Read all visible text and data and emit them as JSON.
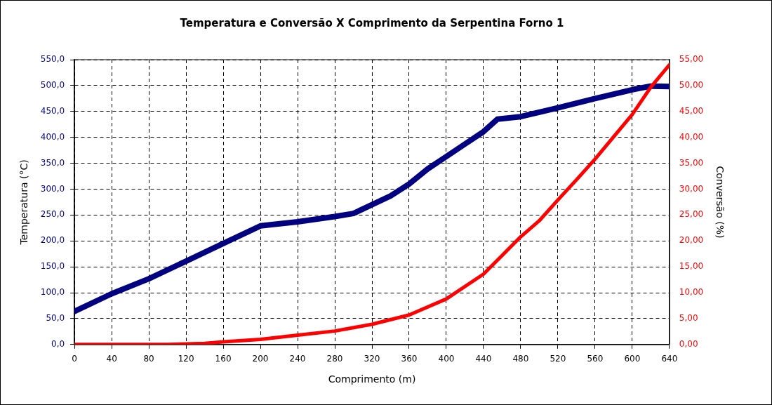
{
  "chart_data": {
    "type": "line",
    "title": "Temperatura e Conversão X Comprimento da Serpentina Forno 1",
    "xlabel": "Comprimento (m)",
    "ylabel": "Temperatura (°C)",
    "y2label": "Conversão (%)",
    "xlim": [
      0,
      640
    ],
    "xticks": [
      0,
      40,
      80,
      120,
      160,
      200,
      240,
      280,
      320,
      360,
      400,
      440,
      480,
      520,
      560,
      600,
      640
    ],
    "ylim": [
      0,
      550
    ],
    "yticks": [
      {
        "value": 0,
        "label": "0,0"
      },
      {
        "value": 50,
        "label": "50,0"
      },
      {
        "value": 100,
        "label": "100,0"
      },
      {
        "value": 150,
        "label": "150,0"
      },
      {
        "value": 200,
        "label": "200,0"
      },
      {
        "value": 250,
        "label": "250,0"
      },
      {
        "value": 300,
        "label": "300,0"
      },
      {
        "value": 350,
        "label": "350,0"
      },
      {
        "value": 400,
        "label": "400,0"
      },
      {
        "value": 450,
        "label": "450,0"
      },
      {
        "value": 500,
        "label": "500,0"
      },
      {
        "value": 550,
        "label": "550,0"
      }
    ],
    "y2lim": [
      0,
      55
    ],
    "y2ticks": [
      {
        "value": 0,
        "label": "0,00"
      },
      {
        "value": 5,
        "label": "5,00"
      },
      {
        "value": 10,
        "label": "10,00"
      },
      {
        "value": 15,
        "label": "15,00"
      },
      {
        "value": 20,
        "label": "20,00"
      },
      {
        "value": 25,
        "label": "25,00"
      },
      {
        "value": 30,
        "label": "30,00"
      },
      {
        "value": 35,
        "label": "35,00"
      },
      {
        "value": 40,
        "label": "40,00"
      },
      {
        "value": 45,
        "label": "45,00"
      },
      {
        "value": 50,
        "label": "50,00"
      },
      {
        "value": 55,
        "label": "55,00"
      }
    ],
    "grid": true,
    "legend": false,
    "marker": "none",
    "series": [
      {
        "color": "#000080",
        "x": [
          0,
          40,
          80,
          120,
          160,
          200,
          240,
          280,
          300,
          320,
          340,
          360,
          380,
          400,
          420,
          440,
          455,
          480,
          520,
          560,
          600,
          620,
          640
        ],
        "values": [
          64,
          98,
          127,
          161,
          195,
          229,
          237,
          247,
          253,
          270,
          287,
          310,
          339,
          363,
          387,
          411,
          435,
          440,
          457,
          475,
          492,
          499,
          498
        ]
      },
      {
        "color": "#ff0000",
        "axis": "y2",
        "x": [
          0,
          100,
          120,
          140,
          160,
          200,
          240,
          280,
          320,
          360,
          400,
          440,
          460,
          480,
          500,
          520,
          540,
          560,
          580,
          600,
          620,
          640
        ],
        "values": [
          0,
          0,
          0.1,
          0.2,
          0.5,
          1,
          1.8,
          2.6,
          3.9,
          5.7,
          8.8,
          13.6,
          17.2,
          20.8,
          23.9,
          27.9,
          31.8,
          35.8,
          40.1,
          44.4,
          49.7,
          54
        ]
      }
    ]
  }
}
